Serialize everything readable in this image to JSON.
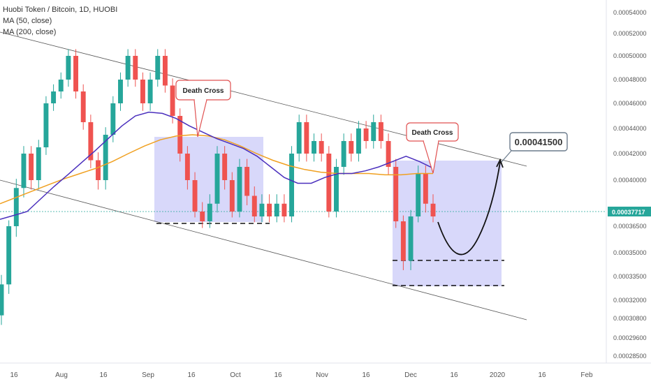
{
  "legend": {
    "symbol": "Huobi Token / Bitcoin, 1D, HUOBI",
    "ma50": "MA (50, close)",
    "ma200": "MA (200, close)"
  },
  "colors": {
    "up": "#26a69a",
    "down": "#ef5350",
    "ma50": "#4a2fbd",
    "ma200": "#f0a020",
    "box": "#c8c8f8",
    "current": "#26a69a"
  },
  "chart_data": {
    "type": "candlestick",
    "title": "Huobi Token / Bitcoin, 1D, HUOBI",
    "y_ticks": [
      "0.00054000",
      "0.00052000",
      "0.00050000",
      "0.00048000",
      "0.00046000",
      "0.00044000",
      "0.00042000",
      "0.00040000",
      "0.00038000",
      "0.00036500",
      "0.00035000",
      "0.00033500",
      "0.00032000",
      "0.00030800",
      "0.00029600",
      "0.00028500"
    ],
    "x_ticks": [
      "16",
      "Aug",
      "16",
      "Sep",
      "16",
      "Oct",
      "16",
      "Nov",
      "16",
      "Dec",
      "16",
      "2020",
      "16",
      "Feb"
    ],
    "last_price": "0.00037717",
    "target_price": "0.00041500",
    "annotations": [
      "Death Cross",
      "Death Cross"
    ],
    "series": [
      {
        "name": "MA (50, close)",
        "values": [
          0.000372,
          0.000376,
          0.00038,
          0.000388,
          0.000396,
          0.000404,
          0.000413,
          0.000422,
          0.000432,
          0.000442,
          0.00045,
          0.000453,
          0.000452,
          0.000448,
          0.000442,
          0.000437,
          0.000432,
          0.000428,
          0.000424,
          0.000418,
          0.00041,
          0.000402,
          0.000398,
          0.000398,
          0.000402,
          0.000405,
          0.000405,
          0.000407,
          0.00041,
          0.000414,
          0.000418,
          0.000414,
          0.000409
        ]
      },
      {
        "name": "MA (200, close)",
        "values": [
          0.000385,
          0.000389,
          0.000393,
          0.000397,
          0.000401,
          0.000405,
          0.000409,
          0.000414,
          0.00042,
          0.000426,
          0.000431,
          0.000434,
          0.000435,
          0.000434,
          0.000431,
          0.000426,
          0.00042,
          0.000415,
          0.000411,
          0.000408,
          0.000406,
          0.000405,
          0.000405,
          0.000405,
          0.000404,
          0.000404,
          0.000405,
          0.000405
        ]
      }
    ],
    "candles": [
      [
        0.00031,
        0.00033
      ],
      [
        0.00033,
        0.000365
      ],
      [
        0.000365,
        0.000395
      ],
      [
        0.000395,
        0.00042
      ],
      [
        0.00042,
        0.0004
      ],
      [
        0.0004,
        0.000425
      ],
      [
        0.000425,
        0.00046
      ],
      [
        0.00046,
        0.00047
      ],
      [
        0.00047,
        0.00048
      ],
      [
        0.00048,
        0.0005
      ],
      [
        0.0005,
        0.00047
      ],
      [
        0.00047,
        0.000445
      ],
      [
        0.000445,
        0.000415
      ],
      [
        0.000415,
        0.0004
      ],
      [
        0.0004,
        0.000435
      ],
      [
        0.000435,
        0.00046
      ],
      [
        0.00046,
        0.00048
      ],
      [
        0.00048,
        0.0005
      ],
      [
        0.0005,
        0.00048
      ],
      [
        0.00048,
        0.00046
      ],
      [
        0.00046,
        0.00048
      ],
      [
        0.00048,
        0.0005
      ],
      [
        0.0005,
        0.000475
      ],
      [
        0.000475,
        0.00045
      ],
      [
        0.00045,
        0.00042
      ],
      [
        0.00042,
        0.0004
      ],
      [
        0.0004,
        0.00038
      ],
      [
        0.00038,
        0.00037
      ],
      [
        0.00037,
        0.000385
      ],
      [
        0.000385,
        0.00042
      ],
      [
        0.00042,
        0.0004
      ],
      [
        0.0004,
        0.00038
      ],
      [
        0.00038,
        0.00041
      ],
      [
        0.00041,
        0.00039
      ],
      [
        0.00039,
        0.000375
      ],
      [
        0.000375,
        0.000385
      ],
      [
        0.000385,
        0.000375
      ],
      [
        0.000375,
        0.000385
      ],
      [
        0.000385,
        0.000375
      ],
      [
        0.000375,
        0.00042
      ],
      [
        0.00042,
        0.000445
      ],
      [
        0.000445,
        0.00042
      ],
      [
        0.00042,
        0.00043
      ],
      [
        0.00043,
        0.00042
      ],
      [
        0.00042,
        0.00038
      ],
      [
        0.00038,
        0.00041
      ],
      [
        0.00041,
        0.00043
      ],
      [
        0.00043,
        0.00042
      ],
      [
        0.00042,
        0.00044
      ],
      [
        0.00044,
        0.00043
      ],
      [
        0.00043,
        0.000445
      ],
      [
        0.000445,
        0.00043
      ],
      [
        0.00043,
        0.00041
      ],
      [
        0.00041,
        0.00037
      ],
      [
        0.00037,
        0.000345
      ],
      [
        0.000345,
        0.000375
      ],
      [
        0.000375,
        0.000405
      ],
      [
        0.000405,
        0.000385
      ],
      [
        0.000385,
        0.000375
      ]
    ]
  }
}
